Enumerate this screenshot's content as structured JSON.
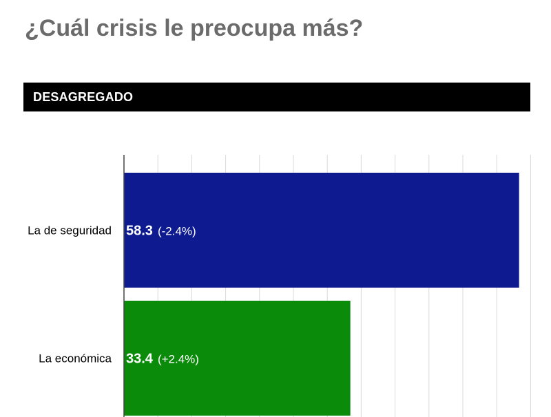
{
  "title": "¿Cuál crisis le preocupa más?",
  "banner": "DESAGREGADO",
  "chart_data": {
    "type": "bar",
    "orientation": "horizontal",
    "categories": [
      "La de seguridad",
      "La económica"
    ],
    "values": [
      58.3,
      33.4
    ],
    "changes": [
      "(-2.4%)",
      "(+2.4%)"
    ],
    "colors": [
      "#0e1a8f",
      "#0a8c0a"
    ],
    "xlim": [
      0,
      60
    ],
    "grid": true,
    "legend": "none"
  }
}
